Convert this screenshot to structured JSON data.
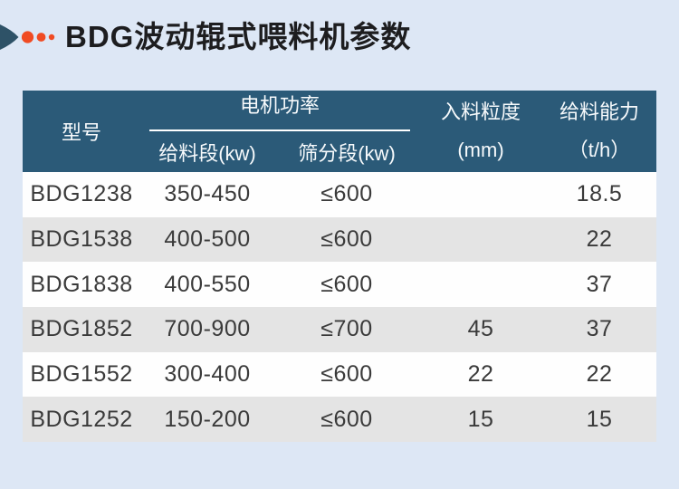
{
  "header": {
    "title": "BDG波动辊式喂料机参数"
  },
  "icons": {
    "deco": "arrow-funnel-with-dots"
  },
  "colors": {
    "page_bg": "#dde7f5",
    "table_header_bg": "#2b5a78",
    "table_header_text": "#f7fafc",
    "row_bg": "#fefefe",
    "row_alt_bg": "#e4e4e4",
    "body_text": "#3a3a3a",
    "title_text": "#1d1d1f",
    "deco_shape": "#2e5267",
    "deco_dots": "#f04b23"
  },
  "table": {
    "columns": {
      "model": "型号",
      "motor_power_group": "电机功率",
      "feed_section": "给料段(kw)",
      "screen_section": "筛分段(kw)",
      "feed_size_line1": "入料粒度",
      "feed_size_line2": "(mm)",
      "capacity_line1": "给料能力",
      "capacity_line2": "（t/h）"
    },
    "rows": [
      [
        "BDG1238",
        "350-450",
        "≤600",
        "",
        "18.5"
      ],
      [
        "BDG1538",
        "400-500",
        "≤600",
        "",
        "22"
      ],
      [
        "BDG1838",
        "400-550",
        "≤600",
        "",
        "37"
      ],
      [
        "BDG1852",
        "700-900",
        "≤700",
        "45",
        "37"
      ],
      [
        "BDG1552",
        "300-400",
        "≤600",
        "22",
        "22"
      ],
      [
        "BDG1252",
        "150-200",
        "≤600",
        "15",
        "15"
      ]
    ]
  }
}
